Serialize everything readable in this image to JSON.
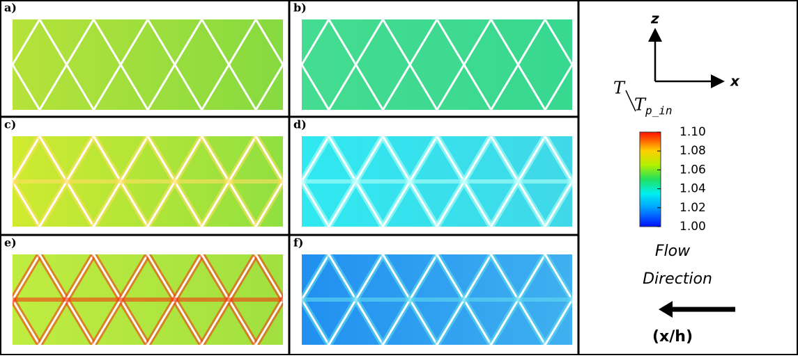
{
  "panels": [
    {
      "label": "a)"
    },
    {
      "label": "b)"
    },
    {
      "label": "c)"
    },
    {
      "label": "d)"
    },
    {
      "label": "e)"
    },
    {
      "label": "f)"
    }
  ],
  "legend": {
    "axis_z": "z",
    "axis_x": "x",
    "colorbar": {
      "title_numerator": "T",
      "title_denominator": "T",
      "title_subscript": "p_in",
      "ticks": [
        {
          "value": 1.1,
          "label": "1.10"
        },
        {
          "value": 1.08,
          "label": "1.08"
        },
        {
          "value": 1.06,
          "label": "1.06"
        },
        {
          "value": 1.04,
          "label": "1.04"
        },
        {
          "value": 1.02,
          "label": "1.02"
        },
        {
          "value": 1.0,
          "label": "1.00"
        }
      ],
      "range": [
        1.0,
        1.1
      ]
    },
    "flow_label_1": "Flow",
    "flow_label_2": "Direction",
    "unit": "(x/h)"
  }
}
